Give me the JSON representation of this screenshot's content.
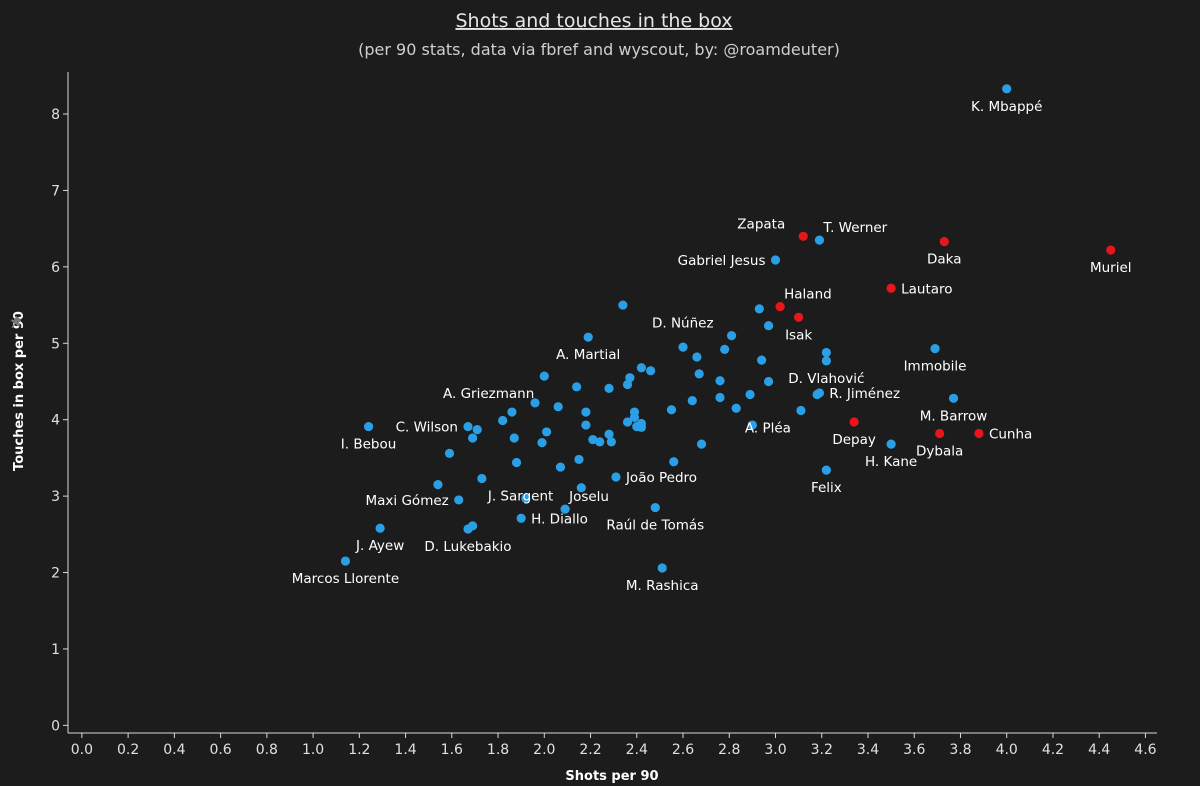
{
  "chart_data": {
    "type": "scatter",
    "title": "Shots and touches in the box",
    "subtitle": "(per 90 stats, data via fbref and wyscout, by: @roamdeuter)",
    "xlabel": "Shots per 90",
    "ylabel": "Touches in box per 90",
    "xlim": [
      -0.06,
      4.65
    ],
    "ylim": [
      -0.1,
      8.55
    ],
    "xticks": [
      "0.0",
      "0.2",
      "0.4",
      "0.6",
      "0.8",
      "1.0",
      "1.2",
      "1.4",
      "1.6",
      "1.8",
      "2.0",
      "2.2",
      "2.4",
      "2.6",
      "2.8",
      "3.0",
      "3.2",
      "3.4",
      "3.6",
      "3.8",
      "4.0",
      "4.2",
      "4.4",
      "4.6"
    ],
    "yticks": [
      "0",
      "1",
      "2",
      "3",
      "4",
      "5",
      "6",
      "7",
      "8"
    ],
    "colors": {
      "blue": "#2b9fe6",
      "red": "#e8161b",
      "background": "#1c1c1c",
      "text": "#ffffff"
    },
    "legend": "none",
    "points": [
      {
        "x": 4.0,
        "y": 8.33,
        "label": "K. Mbappé",
        "color": "blue",
        "lpos": "below"
      },
      {
        "x": 3.12,
        "y": 6.4,
        "label": "Zapata",
        "color": "red",
        "lpos": "above-left"
      },
      {
        "x": 3.19,
        "y": 6.35,
        "label": "T. Werner",
        "color": "blue",
        "lpos": "above-right"
      },
      {
        "x": 3.73,
        "y": 6.33,
        "label": "Daka",
        "color": "red",
        "lpos": "below"
      },
      {
        "x": 4.45,
        "y": 6.22,
        "label": "Muriel",
        "color": "red",
        "lpos": "below"
      },
      {
        "x": 3.0,
        "y": 6.09,
        "label": "Gabriel Jesus",
        "color": "blue",
        "lpos": "left"
      },
      {
        "x": 3.5,
        "y": 5.72,
        "label": "Lautaro",
        "color": "red",
        "lpos": "right"
      },
      {
        "x": 3.02,
        "y": 5.48,
        "label": "Haland",
        "color": "red",
        "lpos": "above-right"
      },
      {
        "x": 2.93,
        "y": 5.45,
        "label": "",
        "color": "blue"
      },
      {
        "x": 3.1,
        "y": 5.34,
        "label": "Isak",
        "color": "red",
        "lpos": "below"
      },
      {
        "x": 2.97,
        "y": 5.23,
        "label": "",
        "color": "blue"
      },
      {
        "x": 2.34,
        "y": 5.5,
        "label": "",
        "color": "blue"
      },
      {
        "x": 2.81,
        "y": 5.1,
        "label": "D. Núñez",
        "color": "blue",
        "lpos": "above-left"
      },
      {
        "x": 2.19,
        "y": 5.08,
        "label": "A. Martial",
        "color": "blue",
        "lpos": "below"
      },
      {
        "x": 2.6,
        "y": 4.95,
        "label": "",
        "color": "blue"
      },
      {
        "x": 2.78,
        "y": 4.92,
        "label": "",
        "color": "blue"
      },
      {
        "x": 3.22,
        "y": 4.88,
        "label": "",
        "color": "blue"
      },
      {
        "x": 3.69,
        "y": 4.93,
        "label": "Immobile",
        "color": "blue",
        "lpos": "below"
      },
      {
        "x": 2.66,
        "y": 4.82,
        "label": "",
        "color": "blue"
      },
      {
        "x": 2.94,
        "y": 4.78,
        "label": "",
        "color": "blue"
      },
      {
        "x": 3.22,
        "y": 4.77,
        "label": "D. Vlahović",
        "color": "blue",
        "lpos": "below"
      },
      {
        "x": 2.42,
        "y": 4.68,
        "label": "",
        "color": "blue"
      },
      {
        "x": 2.46,
        "y": 4.64,
        "label": "",
        "color": "blue"
      },
      {
        "x": 2.67,
        "y": 4.6,
        "label": "",
        "color": "blue"
      },
      {
        "x": 2.37,
        "y": 4.55,
        "label": "",
        "color": "blue"
      },
      {
        "x": 2.0,
        "y": 4.57,
        "label": "A. Griezmann",
        "color": "blue",
        "lpos": "below-left"
      },
      {
        "x": 2.76,
        "y": 4.51,
        "label": "",
        "color": "blue"
      },
      {
        "x": 2.97,
        "y": 4.5,
        "label": "",
        "color": "blue"
      },
      {
        "x": 2.36,
        "y": 4.46,
        "label": "",
        "color": "blue"
      },
      {
        "x": 2.14,
        "y": 4.43,
        "label": "",
        "color": "blue"
      },
      {
        "x": 2.28,
        "y": 4.41,
        "label": "",
        "color": "blue"
      },
      {
        "x": 3.19,
        "y": 4.35,
        "label": "R. Jiménez",
        "color": "blue",
        "lpos": "right"
      },
      {
        "x": 3.18,
        "y": 4.33,
        "label": "",
        "color": "blue"
      },
      {
        "x": 3.77,
        "y": 4.28,
        "label": "M. Barrow",
        "color": "blue",
        "lpos": "below"
      },
      {
        "x": 2.89,
        "y": 4.33,
        "label": "",
        "color": "blue"
      },
      {
        "x": 2.76,
        "y": 4.29,
        "label": "",
        "color": "blue"
      },
      {
        "x": 2.64,
        "y": 4.25,
        "label": "",
        "color": "blue"
      },
      {
        "x": 1.96,
        "y": 4.22,
        "label": "",
        "color": "blue"
      },
      {
        "x": 2.06,
        "y": 4.17,
        "label": "",
        "color": "blue"
      },
      {
        "x": 2.83,
        "y": 4.15,
        "label": "",
        "color": "blue"
      },
      {
        "x": 2.55,
        "y": 4.13,
        "label": "",
        "color": "blue"
      },
      {
        "x": 3.11,
        "y": 4.12,
        "label": "A. Pléa",
        "color": "blue",
        "lpos": "below-left"
      },
      {
        "x": 1.86,
        "y": 4.1,
        "label": "",
        "color": "blue"
      },
      {
        "x": 2.18,
        "y": 4.1,
        "label": "",
        "color": "blue"
      },
      {
        "x": 2.39,
        "y": 4.1,
        "label": "",
        "color": "blue"
      },
      {
        "x": 2.39,
        "y": 4.03,
        "label": "",
        "color": "blue"
      },
      {
        "x": 1.82,
        "y": 3.99,
        "label": "",
        "color": "blue"
      },
      {
        "x": 2.36,
        "y": 3.97,
        "label": "",
        "color": "blue"
      },
      {
        "x": 3.34,
        "y": 3.97,
        "label": "Depay",
        "color": "red",
        "lpos": "below"
      },
      {
        "x": 2.42,
        "y": 3.95,
        "label": "",
        "color": "blue"
      },
      {
        "x": 2.42,
        "y": 3.9,
        "label": "",
        "color": "blue"
      },
      {
        "x": 2.4,
        "y": 3.91,
        "label": "",
        "color": "blue"
      },
      {
        "x": 2.18,
        "y": 3.93,
        "label": "",
        "color": "blue"
      },
      {
        "x": 2.9,
        "y": 3.93,
        "label": "",
        "color": "blue"
      },
      {
        "x": 1.24,
        "y": 3.91,
        "label": "I. Bebou",
        "color": "blue",
        "lpos": "below"
      },
      {
        "x": 1.67,
        "y": 3.91,
        "label": "C. Wilson",
        "color": "blue",
        "lpos": "left"
      },
      {
        "x": 1.71,
        "y": 3.87,
        "label": "",
        "color": "blue"
      },
      {
        "x": 2.01,
        "y": 3.84,
        "label": "",
        "color": "blue"
      },
      {
        "x": 2.28,
        "y": 3.81,
        "label": "",
        "color": "blue"
      },
      {
        "x": 3.71,
        "y": 3.82,
        "label": "Dybala",
        "color": "red",
        "lpos": "below"
      },
      {
        "x": 3.88,
        "y": 3.82,
        "label": "Cunha",
        "color": "red",
        "lpos": "right"
      },
      {
        "x": 1.69,
        "y": 3.76,
        "label": "",
        "color": "blue"
      },
      {
        "x": 1.87,
        "y": 3.76,
        "label": "",
        "color": "blue"
      },
      {
        "x": 2.21,
        "y": 3.74,
        "label": "",
        "color": "blue"
      },
      {
        "x": 2.24,
        "y": 3.71,
        "label": "",
        "color": "blue"
      },
      {
        "x": 2.29,
        "y": 3.71,
        "label": "",
        "color": "blue"
      },
      {
        "x": 1.99,
        "y": 3.7,
        "label": "",
        "color": "blue"
      },
      {
        "x": 2.68,
        "y": 3.68,
        "label": "",
        "color": "blue"
      },
      {
        "x": 3.5,
        "y": 3.68,
        "label": "H. Kane",
        "color": "blue",
        "lpos": "below"
      },
      {
        "x": 1.59,
        "y": 3.56,
        "label": "",
        "color": "blue"
      },
      {
        "x": 2.15,
        "y": 3.48,
        "label": "",
        "color": "blue"
      },
      {
        "x": 2.56,
        "y": 3.45,
        "label": "",
        "color": "blue"
      },
      {
        "x": 1.88,
        "y": 3.44,
        "label": "",
        "color": "blue"
      },
      {
        "x": 2.07,
        "y": 3.38,
        "label": "",
        "color": "blue"
      },
      {
        "x": 3.22,
        "y": 3.34,
        "label": "Felix",
        "color": "blue",
        "lpos": "below"
      },
      {
        "x": 2.31,
        "y": 3.25,
        "label": "João Pedro",
        "color": "blue",
        "lpos": "right"
      },
      {
        "x": 1.73,
        "y": 3.23,
        "label": "J. Sargent",
        "color": "blue",
        "lpos": "below-right"
      },
      {
        "x": 1.54,
        "y": 3.15,
        "label": "",
        "color": "blue"
      },
      {
        "x": 2.16,
        "y": 3.11,
        "label": "",
        "color": "blue"
      },
      {
        "x": 1.92,
        "y": 2.97,
        "label": "",
        "color": "blue"
      },
      {
        "x": 1.63,
        "y": 2.95,
        "label": "Maxi Gómez",
        "color": "blue",
        "lpos": "left"
      },
      {
        "x": 2.48,
        "y": 2.85,
        "label": "Raúl de Tomás",
        "color": "blue",
        "lpos": "below"
      },
      {
        "x": 2.09,
        "y": 2.83,
        "label": "Joselu",
        "color": "blue",
        "lpos": "above-right"
      },
      {
        "x": 1.9,
        "y": 2.71,
        "label": "H. Diallo",
        "color": "blue",
        "lpos": "right"
      },
      {
        "x": 1.69,
        "y": 2.61,
        "label": "",
        "color": "blue"
      },
      {
        "x": 1.67,
        "y": 2.57,
        "label": "D. Lukebakio",
        "color": "blue",
        "lpos": "below"
      },
      {
        "x": 1.29,
        "y": 2.58,
        "label": "J. Ayew",
        "color": "blue",
        "lpos": "below"
      },
      {
        "x": 1.14,
        "y": 2.15,
        "label": "Marcos Llorente",
        "color": "blue",
        "lpos": "below"
      },
      {
        "x": 2.51,
        "y": 2.06,
        "label": "M. Rashica",
        "color": "blue",
        "lpos": "below"
      }
    ]
  }
}
